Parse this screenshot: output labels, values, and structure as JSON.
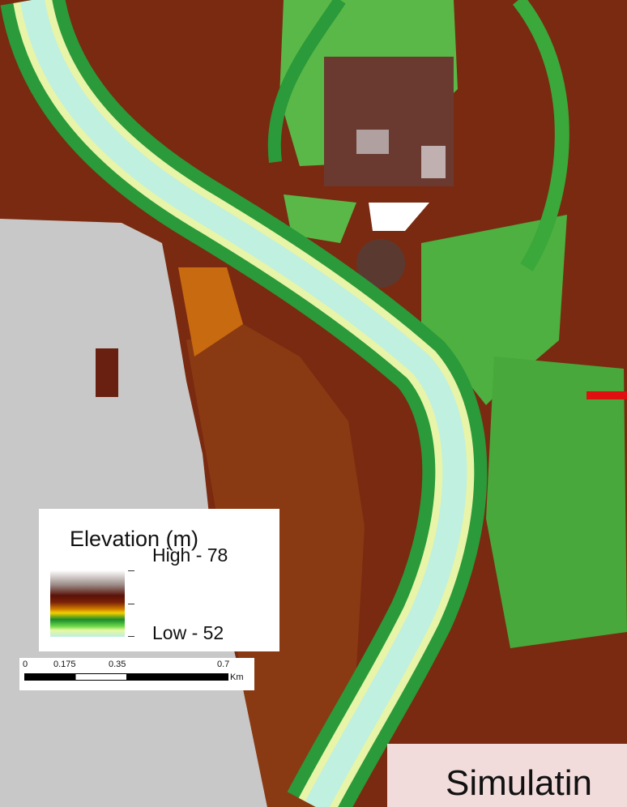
{
  "legend": {
    "title": "Elevation (m)",
    "high": "High - 78",
    "low": "Low - 52"
  },
  "scale_bar": {
    "labels": [
      "0",
      "0.175",
      "0.35",
      "0.7"
    ],
    "unit": "Km"
  },
  "caption": "Simulatin"
}
